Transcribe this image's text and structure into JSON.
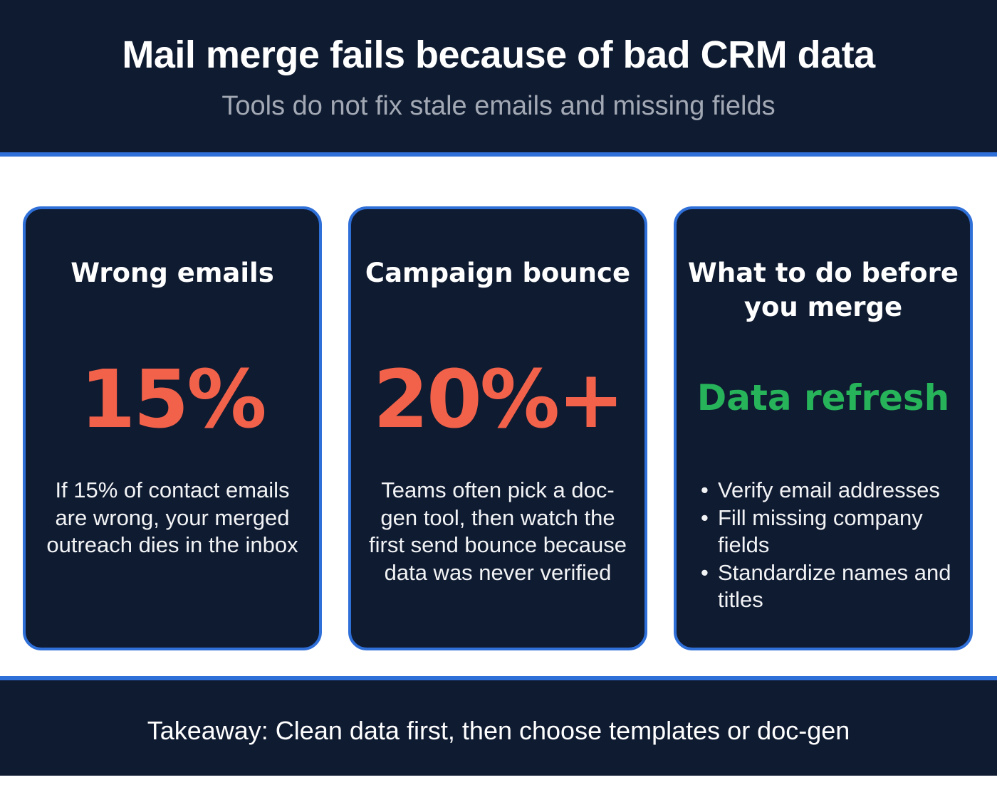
{
  "header": {
    "title": "Mail merge fails because of bad CRM data",
    "subtitle": "Tools do not fix stale emails and missing fields"
  },
  "cards": [
    {
      "title": "Wrong emails",
      "stat": "15%",
      "stat_color": "#f2624a",
      "description": "If 15% of contact emails are wrong, your merged outreach dies in the inbox"
    },
    {
      "title": "Campaign bounce",
      "stat": "20%+",
      "stat_color": "#f2624a",
      "description": "Teams often pick a doc-gen tool, then watch the first send bounce because data was never verified"
    },
    {
      "title": "What to do before you merge",
      "stat": "Data refresh",
      "stat_color": "#27b35a",
      "bullet_symbol": "•",
      "bullets": [
        "Verify email addresses",
        "Fill missing company fields",
        "Standardize names and titles"
      ]
    }
  ],
  "footer": {
    "takeaway": "Takeaway: Clean data first, then choose templates or doc-gen"
  },
  "colors": {
    "background_dark": "#0f1b31",
    "accent_border": "#2f6fd8",
    "stat_red": "#f2624a",
    "stat_green": "#27b35a",
    "subtitle_gray": "#a3a9b4"
  }
}
